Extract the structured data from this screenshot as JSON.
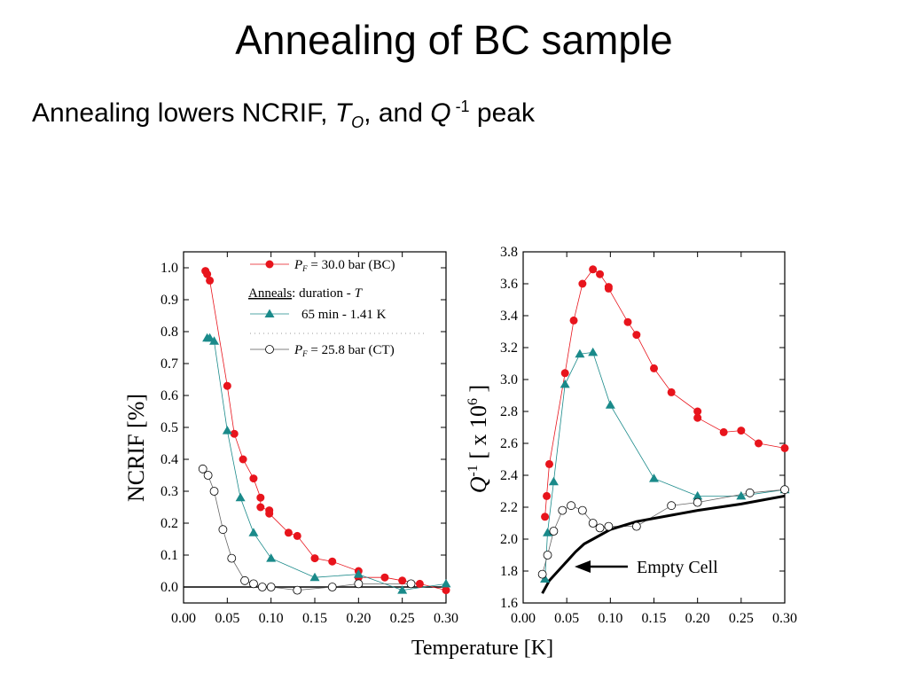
{
  "slide": {
    "title": "Annealing of BC sample",
    "subtitle_text": "Annealing lowers NCRIF, ",
    "subtitle_T": "T",
    "subtitle_T_sub": "O",
    "subtitle_and": ", and ",
    "subtitle_Q": "Q",
    "subtitle_Q_sup": " -1",
    "subtitle_peak": " peak"
  },
  "shared_xlabel": "Temperature [K]",
  "colors": {
    "red": "#e8141c",
    "teal": "#1a8a8a",
    "open": "#ffffff",
    "axis": "#000000"
  },
  "chart_data": [
    {
      "type": "scatter",
      "ylabel": "NCRIF [%]",
      "xlim": [
        0.0,
        0.3
      ],
      "ylim": [
        -0.05,
        1.05
      ],
      "xticks": [
        "0.00",
        "0.05",
        "0.10",
        "0.15",
        "0.20",
        "0.25",
        "0.30"
      ],
      "yticks": [
        "0.0",
        "0.1",
        "0.2",
        "0.3",
        "0.4",
        "0.5",
        "0.6",
        "0.7",
        "0.8",
        "0.9",
        "1.0"
      ],
      "legend": {
        "entry1_P": "P",
        "entry1_sub": "F",
        "entry1_rest": " = 30.0 bar (BC)",
        "anneals_label": "Anneals",
        "anneals_rest": ": duration -  ",
        "anneals_T": "T",
        "entry2": "65 min -   1.41 K",
        "entry3_P": "P",
        "entry3_sub": "F",
        "entry3_rest": " = 25.8 bar (CT)"
      },
      "series": [
        {
          "marker": "filled-circle",
          "color": "#e8141c",
          "x": [
            0.025,
            0.027,
            0.03,
            0.05,
            0.058,
            0.068,
            0.08,
            0.088,
            0.088,
            0.098,
            0.098,
            0.12,
            0.13,
            0.15,
            0.17,
            0.2,
            0.2,
            0.23,
            0.25,
            0.27,
            0.3
          ],
          "y": [
            0.99,
            0.98,
            0.96,
            0.63,
            0.48,
            0.4,
            0.34,
            0.28,
            0.25,
            0.24,
            0.23,
            0.17,
            0.16,
            0.09,
            0.08,
            0.05,
            0.03,
            0.03,
            0.02,
            0.01,
            -0.01
          ]
        },
        {
          "marker": "filled-triangle",
          "color": "#1a8a8a",
          "x": [
            0.027,
            0.03,
            0.035,
            0.05,
            0.065,
            0.08,
            0.1,
            0.15,
            0.2,
            0.25,
            0.3
          ],
          "y": [
            0.78,
            0.78,
            0.77,
            0.49,
            0.28,
            0.17,
            0.09,
            0.03,
            0.04,
            -0.01,
            0.01
          ]
        },
        {
          "marker": "open-circle",
          "color": "#000000",
          "x": [
            0.022,
            0.028,
            0.035,
            0.045,
            0.055,
            0.07,
            0.08,
            0.09,
            0.1,
            0.13,
            0.17,
            0.2,
            0.26
          ],
          "y": [
            0.37,
            0.35,
            0.3,
            0.18,
            0.09,
            0.02,
            0.01,
            0.0,
            0.0,
            -0.01,
            0.0,
            0.01,
            0.01
          ]
        }
      ]
    },
    {
      "type": "scatter",
      "ylabel_Q": "Q",
      "ylabel_sup": "-1",
      "ylabel_rest": " [ x 10",
      "ylabel_exp": "6",
      "ylabel_end": " ]",
      "xlim": [
        0.0,
        0.3
      ],
      "ylim": [
        1.6,
        3.8
      ],
      "xticks": [
        "0.00",
        "0.05",
        "0.10",
        "0.15",
        "0.20",
        "0.25",
        "0.30"
      ],
      "yticks": [
        "1.6",
        "1.8",
        "2.0",
        "2.2",
        "2.4",
        "2.6",
        "2.8",
        "3.0",
        "3.2",
        "3.4",
        "3.6",
        "3.8"
      ],
      "annotation": "Empty Cell",
      "series": [
        {
          "marker": "filled-circle",
          "color": "#e8141c",
          "x": [
            0.025,
            0.027,
            0.03,
            0.048,
            0.058,
            0.068,
            0.08,
            0.088,
            0.098,
            0.098,
            0.12,
            0.13,
            0.15,
            0.17,
            0.2,
            0.2,
            0.23,
            0.25,
            0.27,
            0.3
          ],
          "y": [
            2.14,
            2.27,
            2.47,
            3.04,
            3.37,
            3.6,
            3.69,
            3.66,
            3.58,
            3.57,
            3.36,
            3.28,
            3.07,
            2.92,
            2.8,
            2.76,
            2.67,
            2.68,
            2.6,
            2.57
          ]
        },
        {
          "marker": "filled-triangle",
          "color": "#1a8a8a",
          "x": [
            0.025,
            0.028,
            0.035,
            0.048,
            0.065,
            0.08,
            0.1,
            0.15,
            0.2,
            0.25,
            0.3
          ],
          "y": [
            1.75,
            2.04,
            2.36,
            2.97,
            3.16,
            3.17,
            2.84,
            2.38,
            2.27,
            2.27,
            2.31
          ]
        },
        {
          "marker": "open-circle",
          "color": "#000000",
          "x": [
            0.022,
            0.028,
            0.035,
            0.045,
            0.055,
            0.068,
            0.08,
            0.088,
            0.098,
            0.13,
            0.17,
            0.2,
            0.26,
            0.3
          ],
          "y": [
            1.78,
            1.9,
            2.05,
            2.18,
            2.21,
            2.18,
            2.1,
            2.07,
            2.08,
            2.08,
            2.21,
            2.23,
            2.29,
            2.31
          ]
        },
        {
          "marker": "none",
          "line": "thick",
          "color": "#000000",
          "x": [
            0.022,
            0.03,
            0.04,
            0.05,
            0.06,
            0.07,
            0.08,
            0.1,
            0.13,
            0.17,
            0.2,
            0.25,
            0.3
          ],
          "y": [
            1.66,
            1.74,
            1.8,
            1.86,
            1.92,
            1.97,
            2.0,
            2.06,
            2.11,
            2.15,
            2.18,
            2.22,
            2.27
          ]
        }
      ]
    }
  ]
}
